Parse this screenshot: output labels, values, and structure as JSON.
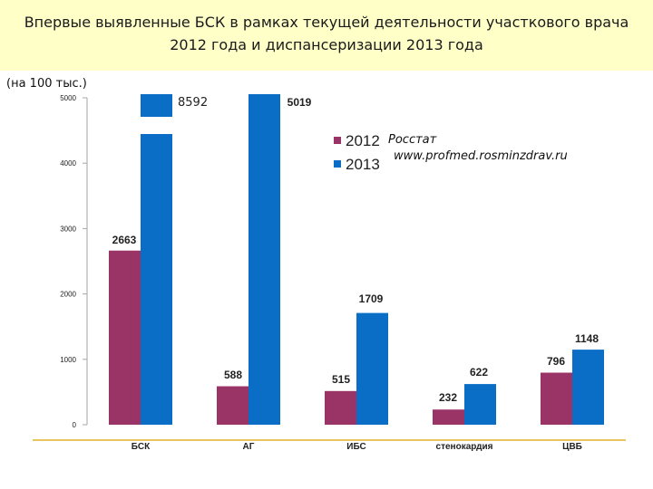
{
  "header": {
    "title_line1": "Впервые выявленные БСК в рамках текущей деятельности участкового врача",
    "title_line2": "2012 года и диспансеризации 2013 года",
    "bg_color": "#ffffc8"
  },
  "unit_label": "(на 100 тыс.)",
  "source": {
    "line1": "Росстат",
    "line2": "www.profmed.rosminzdrav.ru"
  },
  "chart_data": {
    "type": "bar",
    "categories": [
      "БСК",
      "АГ",
      "ИБС",
      "стенокардия",
      "ЦВБ"
    ],
    "series": [
      {
        "name": "2012",
        "color": "#9b3466",
        "values": [
          2663,
          588,
          515,
          232,
          796
        ],
        "labels": [
          "2663",
          "588",
          "515",
          "232",
          "796"
        ]
      },
      {
        "name": "2013",
        "color": "#0a6ec6",
        "values": [
          8592,
          5019,
          1709,
          622,
          1148
        ],
        "labels": [
          "8592",
          "5019",
          "1709",
          "622",
          "1148"
        ]
      }
    ],
    "ylim": [
      0,
      5000
    ],
    "yticks": [
      "0",
      "1000",
      "2000",
      "3000",
      "4000",
      "5000"
    ],
    "axis_break": {
      "category": "БСК",
      "series": "2013",
      "note": "bar exceeds axis maximum"
    },
    "legend_position": "top-right",
    "grid": false,
    "baseline_color": "#d9a200"
  }
}
